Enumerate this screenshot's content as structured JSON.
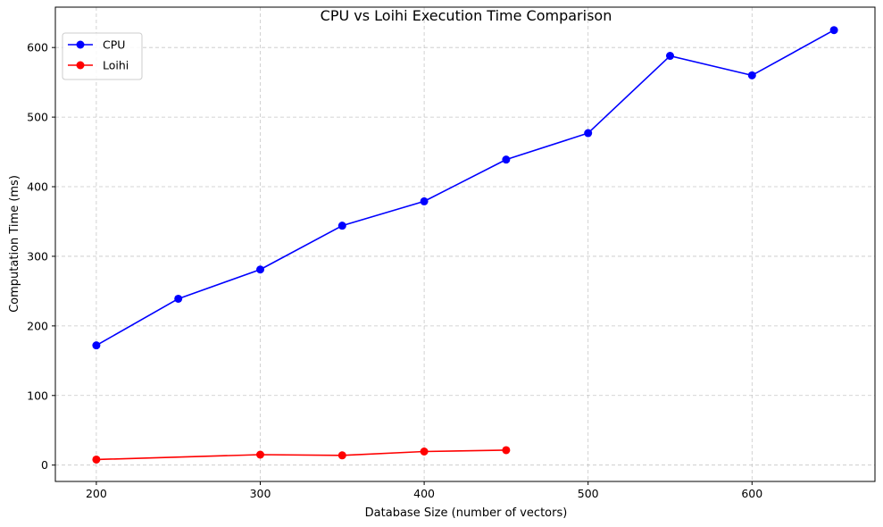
{
  "chart_data": {
    "type": "line",
    "title": "CPU vs Loihi Execution Time Comparison",
    "xlabel": "Database Size (number of vectors)",
    "ylabel": "Computation Time (ms)",
    "xlim": [
      175,
      675
    ],
    "ylim": [
      -23.5,
      658
    ],
    "xticks": [
      200,
      300,
      400,
      500,
      600
    ],
    "yticks": [
      0,
      100,
      200,
      300,
      400,
      500,
      600
    ],
    "grid": true,
    "legend_placement": "top-left",
    "series": [
      {
        "name": "CPU",
        "color": "#0000ff",
        "marker": "circle",
        "x": [
          200,
          250,
          300,
          350,
          400,
          450,
          500,
          550,
          600,
          650
        ],
        "y": [
          172,
          239,
          281,
          344,
          379,
          439,
          477,
          588,
          560,
          625
        ]
      },
      {
        "name": "Loihi",
        "color": "#ff0000",
        "marker": "circle",
        "x": [
          200,
          300,
          350,
          400,
          450
        ],
        "y": [
          8,
          15,
          14,
          19.5,
          21.5
        ]
      }
    ]
  }
}
